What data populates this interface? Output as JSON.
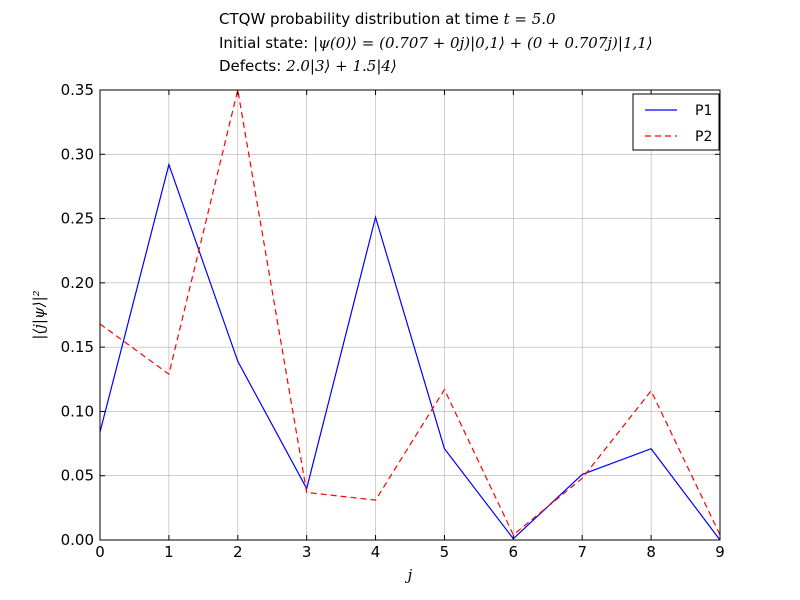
{
  "title": {
    "line1_prefix": "CTQW probability distribution at time ",
    "line1_math": "t = 5.0",
    "line2_prefix": "Initial state: ",
    "line2_math": "|ψ(0)⟩ = (0.707 + 0j)|0,1⟩ + (0 + 0.707j)|1,1⟩",
    "line3_prefix": "Defects: ",
    "line3_math": "2.0|3⟩ + 1.5|4⟩"
  },
  "chart_data": {
    "type": "line",
    "xlabel": "j",
    "ylabel": "|⟨j|ψ⟩|²",
    "x": [
      0,
      1,
      2,
      3,
      4,
      5,
      6,
      7,
      8,
      9
    ],
    "xlim": [
      0,
      9
    ],
    "ylim": [
      0,
      0.35
    ],
    "xticks": [
      0,
      1,
      2,
      3,
      4,
      5,
      6,
      7,
      8,
      9
    ],
    "yticks": [
      0.0,
      0.05,
      0.1,
      0.15,
      0.2,
      0.25,
      0.3,
      0.35
    ],
    "grid": true,
    "legend_position": "top-right",
    "series": [
      {
        "name": "P1",
        "color": "#0000ff",
        "style": "solid",
        "values": [
          0.084,
          0.292,
          0.139,
          0.04,
          0.251,
          0.071,
          0.001,
          0.051,
          0.071,
          0.0
        ]
      },
      {
        "name": "P2",
        "color": "#ff0000",
        "style": "dashed",
        "values": [
          0.168,
          0.129,
          0.35,
          0.037,
          0.031,
          0.117,
          0.004,
          0.048,
          0.116,
          0.004
        ]
      }
    ]
  }
}
